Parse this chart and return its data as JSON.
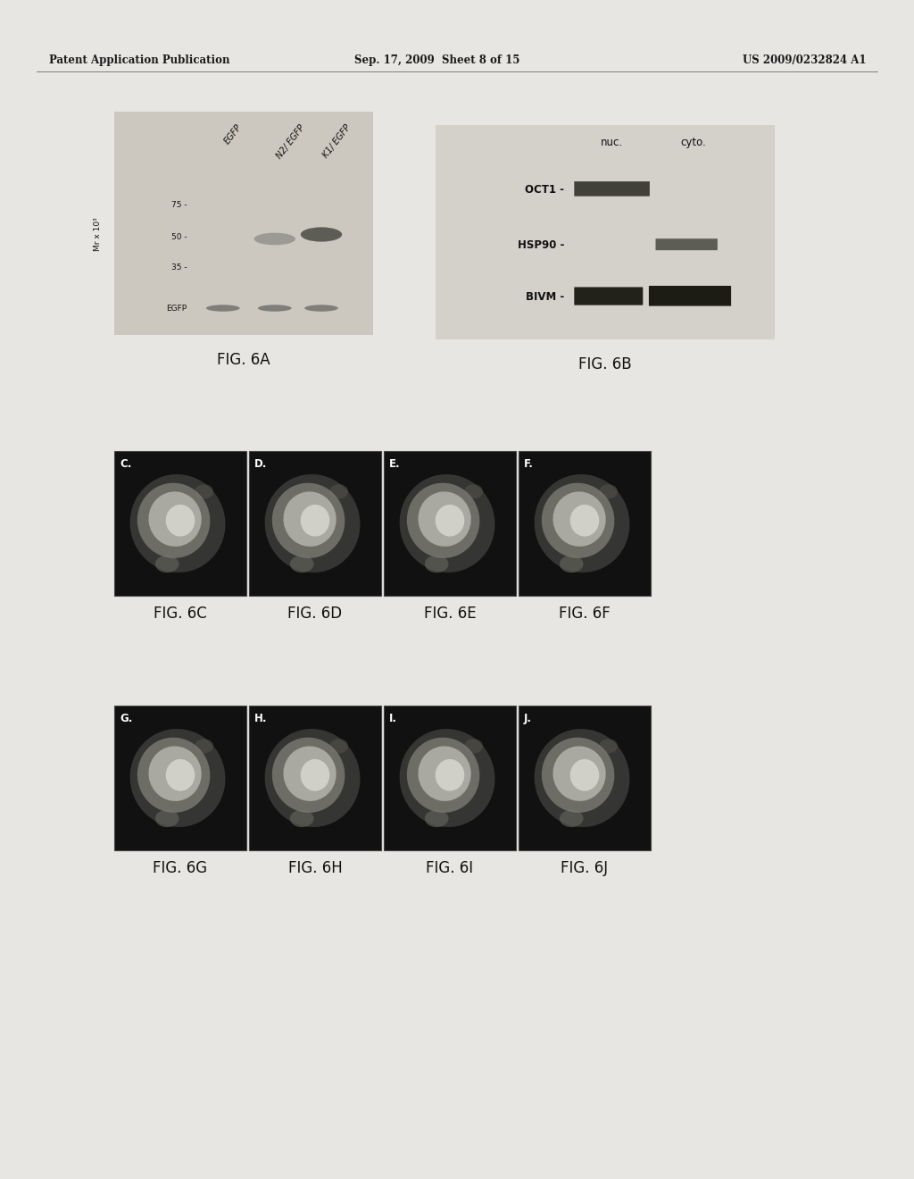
{
  "background_color": "#e8e6e2",
  "header_left": "Patent Application Publication",
  "header_center": "Sep. 17, 2009  Sheet 8 of 15",
  "header_right": "US 2009/0232824 A1",
  "header_fontsize": 8.5,
  "fig6A_caption": "FIG. 6A",
  "fig6B_caption": "FIG. 6B",
  "fig6C_caption": "FIG. 6C",
  "fig6D_caption": "FIG. 6D",
  "fig6E_caption": "FIG. 6E",
  "fig6F_caption": "FIG. 6F",
  "fig6G_caption": "FIG. 6G",
  "fig6H_caption": "FIG. 6H",
  "fig6I_caption": "FIG. 6I",
  "fig6J_caption": "FIG. 6J",
  "caption_fontsize": 12,
  "blot_bg": "#d0ccc6",
  "panel_bg": "#1c1c1c"
}
